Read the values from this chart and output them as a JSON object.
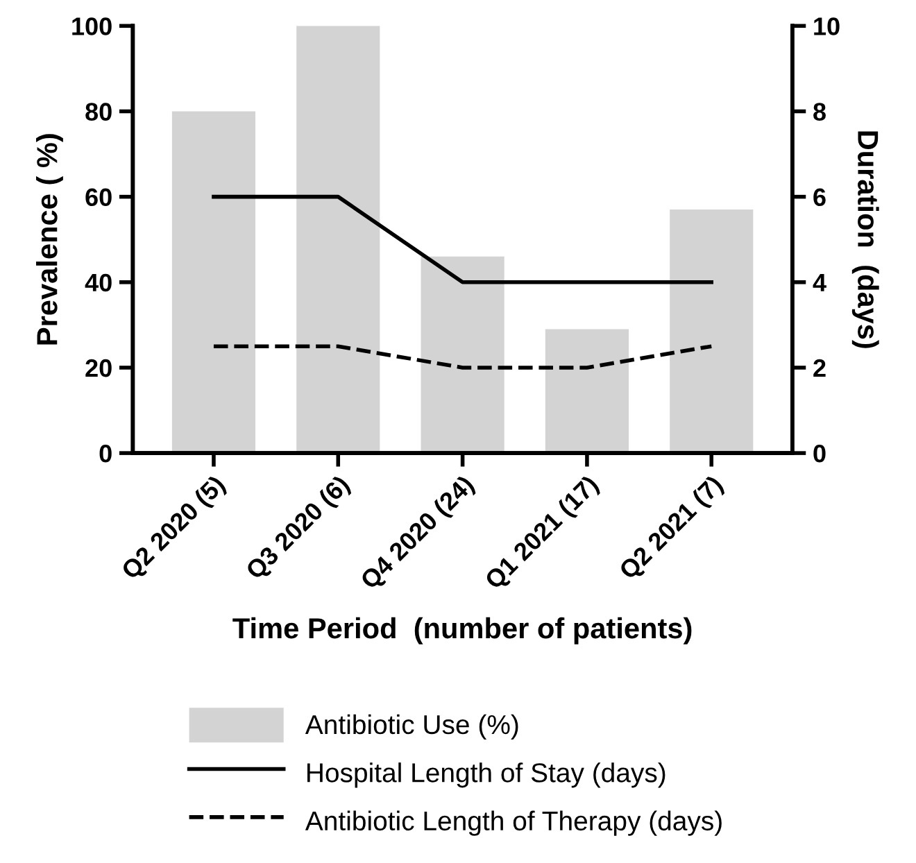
{
  "chart_data": {
    "type": "bar",
    "xlabel": "Time Period  (number of patients)",
    "ylabel": "Prevalence ( %)",
    "y2label": "Duration  (days)",
    "categories": [
      "Q2 2020 (5)",
      "Q3 2020 (6)",
      "Q4 2020 (24)",
      "Q1 2021 (17)",
      "Q2 2021 (7)"
    ],
    "series": [
      {
        "name": "Antibiotic Use (%)",
        "color": "#d3d3d3",
        "values": [
          80,
          100,
          46,
          29,
          57
        ]
      },
      {
        "name": "Hospital Length of Stay (days)",
        "type": "line",
        "axis": "y2",
        "color": "#000000",
        "line_style": "solid",
        "values": [
          6,
          6,
          4,
          4,
          4
        ]
      },
      {
        "name": "Antibiotic Length of Therapy (days)",
        "type": "line",
        "axis": "y2",
        "color": "#000000",
        "line_style": "dashed",
        "values": [
          2.5,
          2.5,
          2,
          2,
          2.5
        ]
      }
    ],
    "ylim": [
      0,
      100
    ],
    "yticks": [
      0,
      20,
      40,
      60,
      80,
      100
    ],
    "y2lim": [
      0,
      10
    ],
    "y2ticks": [
      0,
      2,
      4,
      6,
      8,
      10
    ],
    "grid": false,
    "legend": "bottom"
  }
}
